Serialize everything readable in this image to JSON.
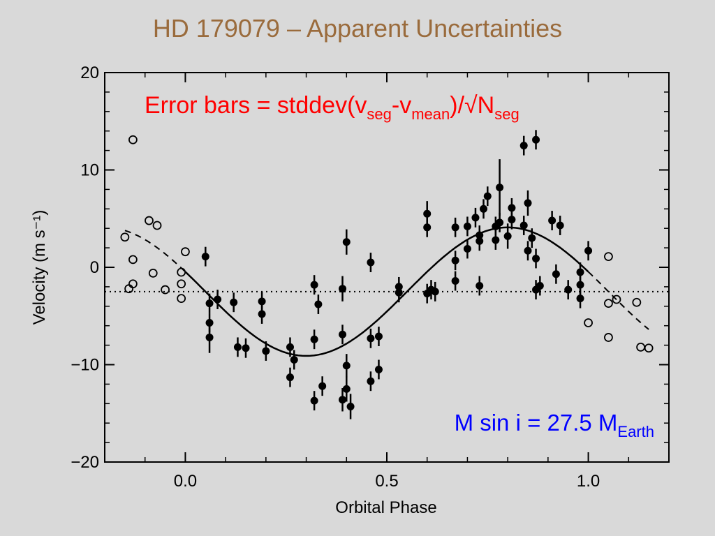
{
  "slide": {
    "title": "HD 179079 – Apparent Uncertainties"
  },
  "chart_data": {
    "type": "scatter",
    "xlabel": "Orbital Phase",
    "ylabel": "Velocity (m s⁻¹)",
    "xlim": [
      -0.2,
      1.2
    ],
    "ylim": [
      -20,
      20
    ],
    "x_ticks": [
      0.0,
      0.5,
      1.0
    ],
    "x_tick_labels": [
      "0.0",
      "0.5",
      "1.0"
    ],
    "y_ticks": [
      20,
      10,
      0,
      -10,
      -20
    ],
    "y_tick_labels": [
      "20",
      "10",
      "0",
      "−10",
      "−20"
    ],
    "grid": false,
    "annotations": {
      "error_bars": {
        "text": "Error bars = stddev(v",
        "sub1": "seg",
        "mid": "-v",
        "sub2": "mean",
        "tail": ")/√N",
        "sub3": "seg",
        "color": "#ff0000"
      },
      "msini": {
        "text": "M sin i  =  27.5 M",
        "sub": "Earth",
        "color": "#0000ff"
      }
    },
    "mean_velocity_line": -2.5,
    "fit_curve": {
      "offset": -2.5,
      "amplitude": 6.6,
      "phase_of_minimum": 0.3,
      "phase_range": [
        0.0,
        1.0
      ],
      "extended_range": [
        -0.15,
        1.15
      ]
    },
    "series": [
      {
        "marker": "filled",
        "points": [
          {
            "x": 0.05,
            "y": 1.1,
            "err": 1.0
          },
          {
            "x": 0.06,
            "y": -5.7,
            "err": 1.0
          },
          {
            "x": 0.06,
            "y": -3.7,
            "err": 1.0
          },
          {
            "x": 0.06,
            "y": -7.2,
            "err": 1.6
          },
          {
            "x": 0.08,
            "y": -3.3,
            "err": 1.0
          },
          {
            "x": 0.12,
            "y": -3.6,
            "err": 1.0
          },
          {
            "x": 0.13,
            "y": -8.2,
            "err": 1.0
          },
          {
            "x": 0.15,
            "y": -8.3,
            "err": 1.0
          },
          {
            "x": 0.19,
            "y": -3.5,
            "err": 1.0
          },
          {
            "x": 0.19,
            "y": -4.8,
            "err": 1.0
          },
          {
            "x": 0.2,
            "y": -8.6,
            "err": 1.0
          },
          {
            "x": 0.26,
            "y": -11.3,
            "err": 1.0
          },
          {
            "x": 0.26,
            "y": -8.2,
            "err": 1.0
          },
          {
            "x": 0.27,
            "y": -9.5,
            "err": 1.0
          },
          {
            "x": 0.32,
            "y": -13.7,
            "err": 1.0
          },
          {
            "x": 0.32,
            "y": -7.4,
            "err": 1.0
          },
          {
            "x": 0.32,
            "y": -1.8,
            "err": 1.0
          },
          {
            "x": 0.33,
            "y": -3.8,
            "err": 1.0
          },
          {
            "x": 0.34,
            "y": -12.2,
            "err": 1.0
          },
          {
            "x": 0.39,
            "y": -2.2,
            "err": 1.3
          },
          {
            "x": 0.39,
            "y": -6.9,
            "err": 1.0
          },
          {
            "x": 0.4,
            "y": 2.6,
            "err": 1.3
          },
          {
            "x": 0.39,
            "y": -13.6,
            "err": 1.2
          },
          {
            "x": 0.4,
            "y": -12.5,
            "err": 1.3
          },
          {
            "x": 0.41,
            "y": -14.3,
            "err": 1.3
          },
          {
            "x": 0.4,
            "y": -10.1,
            "err": 1.2
          },
          {
            "x": 0.46,
            "y": 0.5,
            "err": 1.0
          },
          {
            "x": 0.46,
            "y": -7.3,
            "err": 1.0
          },
          {
            "x": 0.46,
            "y": -11.7,
            "err": 1.0
          },
          {
            "x": 0.48,
            "y": -7.1,
            "err": 1.0
          },
          {
            "x": 0.48,
            "y": -10.5,
            "err": 1.0
          },
          {
            "x": 0.53,
            "y": -2.0,
            "err": 1.0
          },
          {
            "x": 0.53,
            "y": -2.6,
            "err": 1.0
          },
          {
            "x": 0.6,
            "y": 5.5,
            "err": 1.3
          },
          {
            "x": 0.6,
            "y": 4.1,
            "err": 1.0
          },
          {
            "x": 0.6,
            "y": -2.7,
            "err": 1.0
          },
          {
            "x": 0.61,
            "y": -2.3,
            "err": 1.0
          },
          {
            "x": 0.62,
            "y": -2.5,
            "err": 1.0
          },
          {
            "x": 0.67,
            "y": 4.1,
            "err": 1.0
          },
          {
            "x": 0.67,
            "y": 0.7,
            "err": 1.0
          },
          {
            "x": 0.67,
            "y": -1.4,
            "err": 1.0
          },
          {
            "x": 0.7,
            "y": 1.9,
            "err": 1.0
          },
          {
            "x": 0.7,
            "y": 4.2,
            "err": 1.0
          },
          {
            "x": 0.72,
            "y": 5.1,
            "err": 1.0
          },
          {
            "x": 0.73,
            "y": 2.7,
            "err": 1.0
          },
          {
            "x": 0.73,
            "y": 3.3,
            "err": 1.0
          },
          {
            "x": 0.74,
            "y": 6.0,
            "err": 1.0
          },
          {
            "x": 0.73,
            "y": -1.9,
            "err": 1.0
          },
          {
            "x": 0.75,
            "y": 7.3,
            "err": 1.0
          },
          {
            "x": 0.77,
            "y": 4.2,
            "err": 1.0
          },
          {
            "x": 0.77,
            "y": 2.8,
            "err": 1.0
          },
          {
            "x": 0.78,
            "y": 8.2,
            "err": 2.9
          },
          {
            "x": 0.78,
            "y": 4.6,
            "err": 1.0
          },
          {
            "x": 0.81,
            "y": 6.1,
            "err": 1.0
          },
          {
            "x": 0.81,
            "y": 4.9,
            "err": 1.0
          },
          {
            "x": 0.8,
            "y": 3.2,
            "err": 1.3
          },
          {
            "x": 0.84,
            "y": 12.5,
            "err": 1.0
          },
          {
            "x": 0.84,
            "y": 4.3,
            "err": 1.0
          },
          {
            "x": 0.85,
            "y": 6.6,
            "err": 1.3
          },
          {
            "x": 0.85,
            "y": 1.7,
            "err": 1.0
          },
          {
            "x": 0.86,
            "y": 3.0,
            "err": 1.0
          },
          {
            "x": 0.87,
            "y": 13.1,
            "err": 1.0
          },
          {
            "x": 0.87,
            "y": 0.9,
            "err": 1.0
          },
          {
            "x": 0.88,
            "y": -1.9,
            "err": 1.0
          },
          {
            "x": 0.87,
            "y": -2.3,
            "err": 1.0
          },
          {
            "x": 0.91,
            "y": 4.8,
            "err": 1.0
          },
          {
            "x": 0.92,
            "y": -0.7,
            "err": 1.0
          },
          {
            "x": 0.93,
            "y": 4.3,
            "err": 1.0
          },
          {
            "x": 0.95,
            "y": -2.3,
            "err": 1.0
          },
          {
            "x": 0.98,
            "y": -3.2,
            "err": 1.0
          },
          {
            "x": 0.98,
            "y": -1.8,
            "err": 1.0
          },
          {
            "x": 0.98,
            "y": -0.5,
            "err": 1.0
          },
          {
            "x": 1.0,
            "y": 1.7,
            "err": 1.0
          }
        ]
      },
      {
        "marker": "open",
        "points": [
          {
            "x": -0.13,
            "y": 13.1
          },
          {
            "x": -0.15,
            "y": 3.1
          },
          {
            "x": -0.13,
            "y": 0.8
          },
          {
            "x": -0.13,
            "y": -1.7
          },
          {
            "x": -0.14,
            "y": -2.2
          },
          {
            "x": -0.09,
            "y": 4.8
          },
          {
            "x": -0.07,
            "y": 4.3
          },
          {
            "x": -0.08,
            "y": -0.6
          },
          {
            "x": -0.05,
            "y": -2.3
          },
          {
            "x": -0.01,
            "y": -0.5
          },
          {
            "x": -0.01,
            "y": -1.7
          },
          {
            "x": -0.01,
            "y": -3.2
          },
          {
            "x": 0.0,
            "y": 1.6
          },
          {
            "x": 1.05,
            "y": 1.1
          },
          {
            "x": 1.0,
            "y": -5.7
          },
          {
            "x": 1.05,
            "y": -3.7
          },
          {
            "x": 1.07,
            "y": -3.3
          },
          {
            "x": 1.05,
            "y": -7.2
          },
          {
            "x": 1.12,
            "y": -3.6
          },
          {
            "x": 1.13,
            "y": -8.2
          },
          {
            "x": 1.15,
            "y": -8.3
          }
        ]
      }
    ]
  }
}
